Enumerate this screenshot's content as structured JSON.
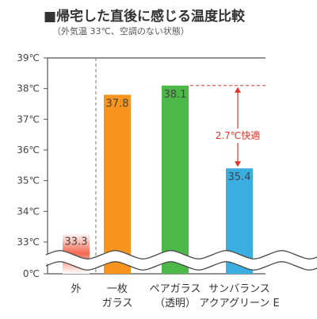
{
  "chart_data": {
    "type": "bar",
    "title": "■帰宅した直後に感じる温度比較",
    "subtitle": "（外気温 33℃、空調のない状態）",
    "ylim": [
      33,
      39
    ],
    "y_ticks": [
      "39℃",
      "38℃",
      "37℃",
      "36℃",
      "35℃",
      "34℃",
      "33℃",
      "0℃"
    ],
    "y_tick_values": [
      39,
      38,
      37,
      36,
      35,
      34,
      33,
      0
    ],
    "axis_break": true,
    "grid": false,
    "categories": [
      [
        "外"
      ],
      [
        "一枚",
        "ガラス"
      ],
      [
        "ペアガラス",
        "（透明）"
      ],
      [
        "サンバランス",
        "アクアグリーン E"
      ]
    ],
    "values": [
      33.3,
      37.8,
      38.1,
      35.4
    ],
    "value_labels": [
      "33.3",
      "37.8",
      "38.1",
      "35.4"
    ],
    "colors": [
      "#f05a3c",
      "#f7941d",
      "#4cb847",
      "#3aaee0"
    ],
    "annotation": {
      "label": "2.7℃快適",
      "from": 38.1,
      "to": 35.4,
      "color": "#e6332a"
    }
  }
}
